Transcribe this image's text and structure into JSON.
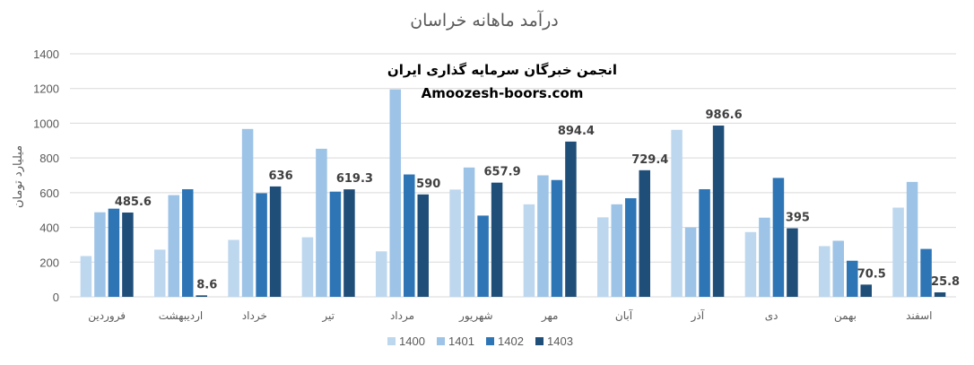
{
  "chart_data": {
    "type": "bar",
    "title": "درآمد ماهانه خراسان",
    "ylabel": "میلیارد تومان",
    "xlabel": "",
    "ylim": [
      0,
      1400
    ],
    "yticks": [
      "0",
      "200",
      "400",
      "600",
      "800",
      "1000",
      "1200",
      "1400"
    ],
    "grid": true,
    "legend_position": "bottom",
    "categories": [
      "فروردین",
      "اردیبهشت",
      "خرداد",
      "تیر",
      "مرداد",
      "شهریور",
      "مهر",
      "آبان",
      "آذر",
      "دی",
      "بهمن",
      "اسفند"
    ],
    "series": [
      {
        "name": "1400",
        "color": "#bdd7ee",
        "values": [
          235,
          272,
          328,
          343,
          262,
          618,
          533,
          458,
          962,
          373,
          292,
          514
        ]
      },
      {
        "name": "1401",
        "color": "#9dc3e6",
        "values": [
          487,
          586,
          967,
          853,
          1195,
          745,
          700,
          533,
          400,
          456,
          323,
          662
        ]
      },
      {
        "name": "1402",
        "color": "#2e75b6",
        "values": [
          508,
          620,
          597,
          606,
          705,
          468,
          673,
          568,
          620,
          685,
          208,
          276
        ]
      },
      {
        "name": "1403",
        "color": "#1f4e79",
        "values": [
          485.6,
          8.6,
          636,
          619.3,
          590,
          657.9,
          894.4,
          729.4,
          986.6,
          395,
          70.5,
          25.8
        ]
      }
    ],
    "data_labels": {
      "series": "1403",
      "labels": [
        "485.6",
        "8.6",
        "636",
        "619.3",
        "590",
        "657.9",
        "894.4",
        "729.4",
        "986.6",
        "395",
        "70.5",
        "25.8"
      ]
    }
  },
  "watermark": {
    "line1": "انجمن خبرگان سرمایه گذاری ایران",
    "line2": "Amoozesh-boors.com"
  }
}
